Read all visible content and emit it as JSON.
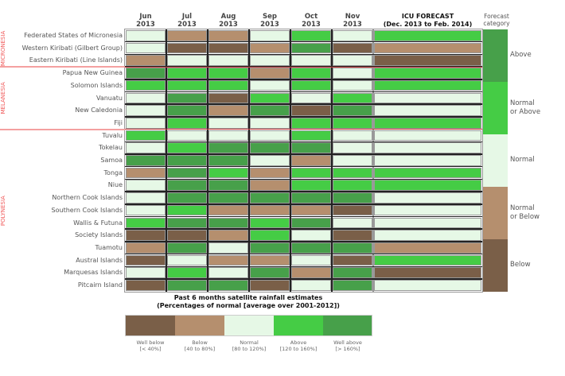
{
  "chart_data": {
    "type": "table",
    "title": "Past 6 months satellite rainfall estimates",
    "subtitle": "(Percentages of normal [average over 2001-2012])",
    "months": [
      "Jun\n2013",
      "Jul\n2013",
      "Aug\n2013",
      "Sep\n2013",
      "Oct\n2013",
      "Nov\n2013"
    ],
    "month_labels": [
      {
        "m": "Jun",
        "y": "2013"
      },
      {
        "m": "Jul",
        "y": "2013"
      },
      {
        "m": "Aug",
        "y": "2013"
      },
      {
        "m": "Sep",
        "y": "2013"
      },
      {
        "m": "Oct",
        "y": "2013"
      },
      {
        "m": "Nov",
        "y": "2013"
      }
    ],
    "forecast_header": {
      "line1": "ICU FORECAST",
      "line2": "(Dec. 2013 to Feb. 2014)"
    },
    "category_header": {
      "line1": "Forecast",
      "line2": "category"
    },
    "regions": [
      {
        "name": "MICRONESIA"
      },
      {
        "name": "MELANESIA"
      },
      {
        "name": "POLYNESIA"
      }
    ],
    "rows": [
      {
        "label": "Federated States of Micronesia",
        "region": 0,
        "months": [
          "normal",
          "below",
          "below",
          "normal",
          "above",
          "normal"
        ],
        "forecast": "normal_or_above"
      },
      {
        "label": "Western Kiribati (Gilbert Group)",
        "region": 0,
        "months": [
          "normal",
          "well_below",
          "well_below",
          "below",
          "well_above",
          "well_below"
        ],
        "forecast": "normal_or_below"
      },
      {
        "label": "Eastern Kiribati (Line Islands)",
        "region": 0,
        "months": [
          "below",
          "normal",
          "normal",
          "normal",
          "normal",
          "normal"
        ],
        "forecast": "below"
      },
      {
        "label": "Papua New Guinea",
        "region": 1,
        "months": [
          "well_above",
          "above",
          "above",
          "below",
          "above",
          "normal"
        ],
        "forecast": "normal_or_above"
      },
      {
        "label": "Solomon Islands",
        "region": 1,
        "months": [
          "above",
          "above",
          "above",
          "normal",
          "above",
          "normal"
        ],
        "forecast": "normal_or_above"
      },
      {
        "label": "Vanuatu",
        "region": 1,
        "months": [
          "normal",
          "well_above",
          "well_below",
          "above",
          "normal",
          "above"
        ],
        "forecast": "normal"
      },
      {
        "label": "New Caledonia",
        "region": 1,
        "months": [
          "normal",
          "well_above",
          "below",
          "well_above",
          "well_below",
          "well_above"
        ],
        "forecast": "normal"
      },
      {
        "label": "Fiji",
        "region": 1,
        "months": [
          "normal",
          "above",
          "normal",
          "normal",
          "above",
          "above"
        ],
        "forecast": "normal_or_above"
      },
      {
        "label": "Tuvalu",
        "region": 2,
        "months": [
          "above",
          "normal",
          "normal",
          "normal",
          "above",
          "normal"
        ],
        "forecast": "normal"
      },
      {
        "label": "Tokelau",
        "region": 2,
        "months": [
          "normal",
          "above",
          "well_above",
          "well_above",
          "well_above",
          "normal"
        ],
        "forecast": "normal"
      },
      {
        "label": "Samoa",
        "region": 2,
        "months": [
          "well_above",
          "well_above",
          "well_above",
          "normal",
          "below",
          "normal"
        ],
        "forecast": "normal"
      },
      {
        "label": "Tonga",
        "region": 2,
        "months": [
          "below",
          "well_above",
          "above",
          "below",
          "above",
          "above"
        ],
        "forecast": "normal_or_above"
      },
      {
        "label": "Niue",
        "region": 2,
        "months": [
          "normal",
          "well_above",
          "well_above",
          "below",
          "above",
          "above"
        ],
        "forecast": "normal_or_above"
      },
      {
        "label": "Northern Cook Islands",
        "region": 2,
        "months": [
          "normal",
          "well_above",
          "well_above",
          "well_above",
          "well_above",
          "well_above"
        ],
        "forecast": "normal"
      },
      {
        "label": "Southern Cook Islands",
        "region": 2,
        "months": [
          "normal",
          "above",
          "below",
          "below",
          "below",
          "well_below"
        ],
        "forecast": "normal"
      },
      {
        "label": "Wallis & Futuna",
        "region": 2,
        "months": [
          "above",
          "well_above",
          "well_above",
          "above",
          "well_above",
          "normal"
        ],
        "forecast": "normal"
      },
      {
        "label": "Society Islands",
        "region": 2,
        "months": [
          "well_below",
          "well_below",
          "below",
          "above",
          "normal",
          "well_below"
        ],
        "forecast": "normal"
      },
      {
        "label": "Tuamotu",
        "region": 2,
        "months": [
          "below",
          "well_above",
          "normal",
          "well_above",
          "well_above",
          "well_above"
        ],
        "forecast": "normal_or_below"
      },
      {
        "label": "Austral Islands",
        "region": 2,
        "months": [
          "well_below",
          "normal",
          "below",
          "below",
          "normal",
          "well_below"
        ],
        "forecast": "normal_or_above"
      },
      {
        "label": "Marquesas Islands",
        "region": 2,
        "months": [
          "normal",
          "above",
          "normal",
          "well_above",
          "below",
          "well_above"
        ],
        "forecast": "below"
      },
      {
        "label": "Pitcairn Island",
        "region": 2,
        "months": [
          "well_below",
          "well_above",
          "well_above",
          "well_below",
          "normal",
          "well_above"
        ],
        "forecast": "normal"
      }
    ],
    "rainfall_legend": [
      {
        "key": "well_below",
        "label": "Well below",
        "range": "[< 40%]",
        "color": "#7a5f48"
      },
      {
        "key": "below",
        "label": "Below",
        "range": "[40 to 80%]",
        "color": "#b58f6e"
      },
      {
        "key": "normal",
        "label": "Normal",
        "range": "[80 to 120%]",
        "color": "#e6f8e6"
      },
      {
        "key": "above",
        "label": "Above",
        "range": "[120 to 160%]",
        "color": "#45cc45"
      },
      {
        "key": "well_above",
        "label": "Well above",
        "range": "[> 160%]",
        "color": "#47a04a"
      }
    ],
    "forecast_colors": {
      "above": "#47a04a",
      "normal_or_above": "#45cc45",
      "normal": "#e6f8e6",
      "normal_or_below": "#b58f6e",
      "below": "#7a5f48"
    },
    "forecast_categories": [
      {
        "key": "above",
        "line1": "Above",
        "line2": ""
      },
      {
        "key": "normal_or_above",
        "line1": "Normal",
        "line2": "or Above"
      },
      {
        "key": "normal",
        "line1": "Normal",
        "line2": ""
      },
      {
        "key": "normal_or_below",
        "line1": "Normal",
        "line2": "or Below"
      },
      {
        "key": "below",
        "line1": "Below",
        "line2": ""
      }
    ]
  }
}
